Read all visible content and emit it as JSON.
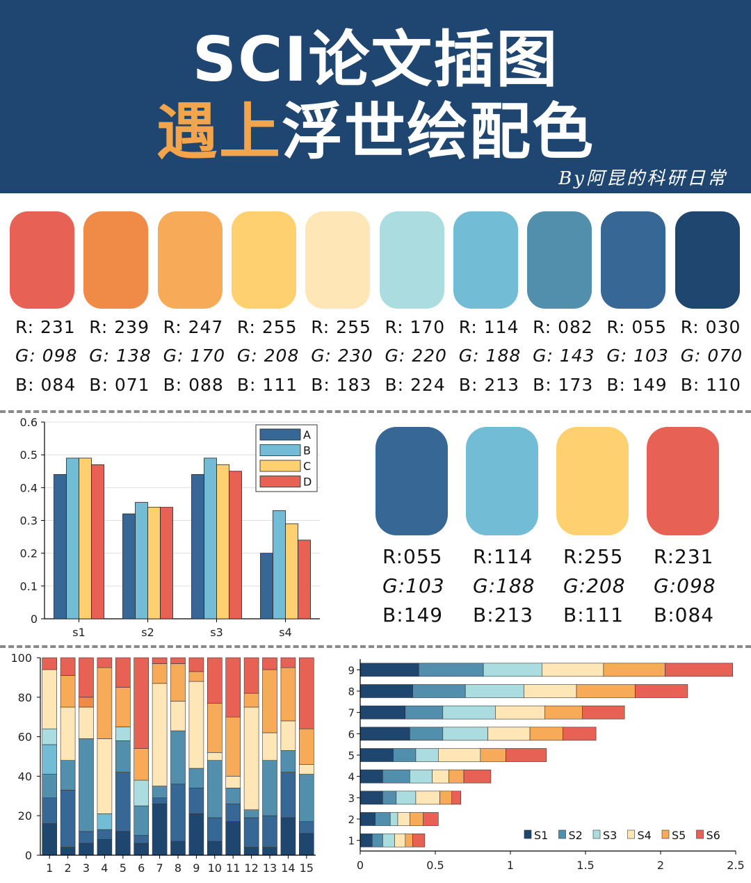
{
  "header": {
    "title_line1": "SCI论文插图",
    "title_line2_highlight": "遇上",
    "title_line2_rest": "浮世绘配色",
    "byline": "By阿昆的科研日常",
    "background": "#1f4670",
    "highlight_color": "#f3a54d"
  },
  "palette": [
    {
      "hex": "#e76254",
      "r": "R: 231",
      "g": "G: 098",
      "b": "B: 084"
    },
    {
      "hex": "#ef8a47",
      "r": "R: 239",
      "g": "G: 138",
      "b": "B: 071"
    },
    {
      "hex": "#f7aa58",
      "r": "R: 247",
      "g": "G: 170",
      "b": "B: 088"
    },
    {
      "hex": "#ffd06f",
      "r": "R: 255",
      "g": "G: 208",
      "b": "B: 111"
    },
    {
      "hex": "#ffe6b7",
      "r": "R: 255",
      "g": "G: 230",
      "b": "B: 183"
    },
    {
      "hex": "#aadce0",
      "r": "R: 170",
      "g": "G: 220",
      "b": "B: 224"
    },
    {
      "hex": "#72bcd5",
      "r": "R: 114",
      "g": "G: 188",
      "b": "B: 213"
    },
    {
      "hex": "#528fad",
      "r": "R: 082",
      "g": "G: 143",
      "b": "B: 173"
    },
    {
      "hex": "#376795",
      "r": "R: 055",
      "g": "G: 103",
      "b": "B: 149"
    },
    {
      "hex": "#1e466e",
      "r": "R: 030",
      "g": "G: 070",
      "b": "B: 110"
    }
  ],
  "selected_palette": [
    {
      "hex": "#376795",
      "r": "R:055",
      "g": "G:103",
      "b": "B:149"
    },
    {
      "hex": "#72bcd5",
      "r": "R:114",
      "g": "G:188",
      "b": "B:213"
    },
    {
      "hex": "#ffd06f",
      "r": "R:255",
      "g": "G:208",
      "b": "B:111"
    },
    {
      "hex": "#e76254",
      "r": "R:231",
      "g": "G:098",
      "b": "B:084"
    }
  ],
  "chart_data": [
    {
      "type": "bar",
      "title": "",
      "categories": [
        "s1",
        "s2",
        "s3",
        "s4"
      ],
      "series": [
        {
          "name": "A",
          "color": "#376795",
          "values": [
            0.44,
            0.32,
            0.44,
            0.2
          ]
        },
        {
          "name": "B",
          "color": "#72bcd5",
          "values": [
            0.49,
            0.355,
            0.49,
            0.33
          ]
        },
        {
          "name": "C",
          "color": "#ffd06f",
          "values": [
            0.49,
            0.34,
            0.47,
            0.29
          ]
        },
        {
          "name": "D",
          "color": "#e76254",
          "values": [
            0.47,
            0.34,
            0.45,
            0.24
          ]
        }
      ],
      "ylim": [
        0,
        0.6
      ],
      "yticks": [
        "0",
        "0.1",
        "0.2",
        "0.3",
        "0.4",
        "0.5",
        "0.6"
      ],
      "legend": "top-right",
      "grid": true
    },
    {
      "type": "bar",
      "stacked": true,
      "categories": [
        "1",
        "2",
        "3",
        "4",
        "5",
        "6",
        "7",
        "8",
        "9",
        "10",
        "11",
        "12",
        "13",
        "14",
        "15"
      ],
      "colors": [
        "#1e466e",
        "#376795",
        "#528fad",
        "#72bcd5",
        "#aadce0",
        "#ffe6b7",
        "#ffd06f",
        "#f7aa58",
        "#ef8a47",
        "#e76254"
      ],
      "stacks": [
        [
          16,
          13,
          12,
          15,
          8,
          30,
          0,
          0,
          0,
          6
        ],
        [
          4,
          29,
          15,
          0,
          0,
          27,
          0,
          16,
          0,
          9
        ],
        [
          6,
          6,
          47,
          0,
          0,
          16,
          0,
          0,
          5,
          20
        ],
        [
          8,
          5,
          0,
          8,
          0,
          38,
          0,
          36,
          0,
          5
        ],
        [
          12,
          30,
          16,
          0,
          7,
          0,
          0,
          20,
          0,
          15
        ],
        [
          6,
          4,
          15,
          0,
          13,
          0,
          0,
          16,
          0,
          46
        ],
        [
          26,
          3,
          6,
          0,
          0,
          52,
          0,
          10,
          0,
          3
        ],
        [
          7,
          29,
          27,
          0,
          0,
          15,
          0,
          19,
          0,
          3
        ],
        [
          21,
          13,
          10,
          0,
          0,
          44,
          0,
          5,
          0,
          7
        ],
        [
          7,
          12,
          29,
          0,
          0,
          4,
          0,
          25,
          0,
          23
        ],
        [
          17,
          9,
          8,
          0,
          0,
          6,
          0,
          30,
          0,
          30
        ],
        [
          4,
          15,
          4,
          0,
          0,
          52,
          0,
          7,
          0,
          18
        ],
        [
          4,
          16,
          28,
          0,
          0,
          14,
          0,
          32,
          0,
          6
        ],
        [
          19,
          23,
          11,
          0,
          0,
          15,
          0,
          27,
          0,
          5
        ],
        [
          11,
          6,
          24,
          0,
          0,
          5,
          0,
          18,
          0,
          36
        ]
      ],
      "ylim": [
        0,
        100
      ],
      "yticks": [
        "0",
        "20",
        "40",
        "60",
        "80",
        "100"
      ]
    },
    {
      "type": "bar",
      "orientation": "horizontal",
      "stacked": true,
      "categories": [
        "1",
        "2",
        "3",
        "4",
        "5",
        "6",
        "7",
        "8",
        "9"
      ],
      "series": [
        {
          "name": "S1",
          "color": "#1e466e",
          "values": [
            0.08,
            0.1,
            0.15,
            0.15,
            0.22,
            0.33,
            0.3,
            0.35,
            0.39
          ]
        },
        {
          "name": "S2",
          "color": "#528fad",
          "values": [
            0.07,
            0.1,
            0.09,
            0.18,
            0.15,
            0.22,
            0.25,
            0.35,
            0.43
          ]
        },
        {
          "name": "S3",
          "color": "#aadce0",
          "values": [
            0.08,
            0.05,
            0.13,
            0.15,
            0.15,
            0.3,
            0.35,
            0.39,
            0.39
          ]
        },
        {
          "name": "S4",
          "color": "#ffe6b7",
          "values": [
            0.07,
            0.08,
            0.16,
            0.11,
            0.28,
            0.28,
            0.33,
            0.35,
            0.41
          ]
        },
        {
          "name": "S5",
          "color": "#f7aa58",
          "values": [
            0.05,
            0.09,
            0.08,
            0.1,
            0.17,
            0.22,
            0.25,
            0.39,
            0.41
          ]
        },
        {
          "name": "S6",
          "color": "#e76254",
          "values": [
            0.08,
            0.1,
            0.06,
            0.18,
            0.27,
            0.22,
            0.28,
            0.35,
            0.45
          ]
        }
      ],
      "xlim": [
        0,
        2.5
      ],
      "xticks": [
        "0",
        "0.5",
        "1",
        "1.5",
        "2",
        "2.5"
      ],
      "legend": "bottom-right"
    }
  ]
}
